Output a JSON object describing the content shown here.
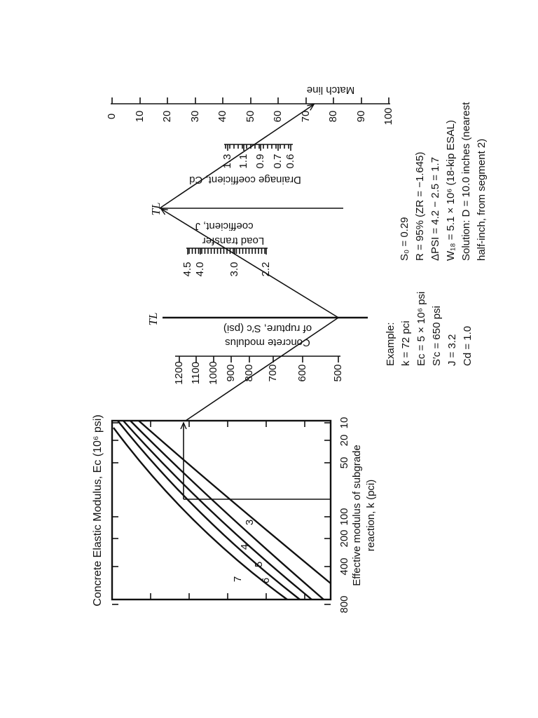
{
  "graph": {
    "y_axis_title": "Concrete Elastic Modulus, Ec (10⁶ psi)",
    "x_axis_title": [
      "Effective modulus of subgrade",
      "reaction, k (pci)"
    ],
    "x_ticks": [
      "800",
      "400",
      "200",
      "100",
      "50",
      "20",
      "10"
    ],
    "curve_labels": [
      "3",
      "4",
      "5",
      "6",
      "7"
    ]
  },
  "scales": {
    "rupture": {
      "label": [
        "Concrete modulus",
        "of rupture, S′c (psi)"
      ],
      "ticks": [
        "1200",
        "1100",
        "1000",
        "900",
        "800",
        "700",
        "600",
        "500"
      ]
    },
    "load_transfer": {
      "label": [
        "Load transfer",
        "coefficient, J"
      ],
      "ticks": [
        "4.5",
        "4.0",
        "3.0",
        "2.2"
      ]
    },
    "drainage": {
      "label": [
        "Drainage coefficient, Cd"
      ],
      "ticks": [
        "1.3",
        "1.1",
        "0.9",
        "0.7",
        "0.6"
      ]
    },
    "match_line": {
      "label": [
        "Match line"
      ],
      "ticks": [
        "0",
        "10",
        "20",
        "30",
        "40",
        "50",
        "60",
        "70",
        "80",
        "90",
        "100"
      ]
    }
  },
  "turning_lines": [
    "TL",
    "TL"
  ],
  "example": [
    "Example:",
    "k = 72 pci",
    "Ec = 5 × 10⁶ psi",
    "S′c = 650 psi",
    "J = 3.2",
    "Cd = 1.0"
  ],
  "solution": [
    "S₀ = 0.29",
    "R = 95% (ZR = −1.645)",
    "ΔPSI = 4.2 − 2.5 = 1.7",
    "W₁₈ = 5.1 × 10⁶ (18-kip ESAL)",
    "Solution:  D = 10.0 inches (nearest",
    "half-inch, from segment 2)"
  ]
}
